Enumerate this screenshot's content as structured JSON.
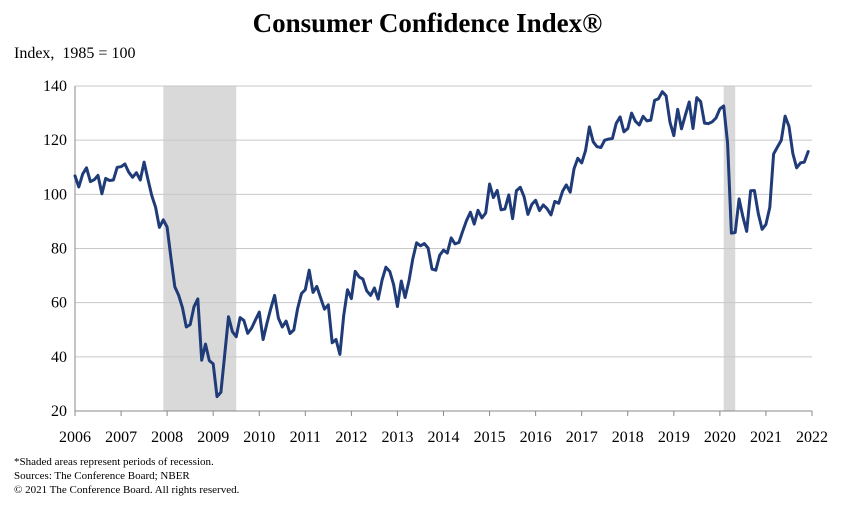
{
  "chart_data": {
    "type": "line",
    "title": "Consumer Confidence Index®",
    "ylabel": "Index,  1985 = 100",
    "xlabel": "",
    "ylim": [
      20,
      140
    ],
    "yticks": [
      20,
      40,
      60,
      80,
      100,
      120,
      140
    ],
    "xlim": [
      2006.0,
      2022.0
    ],
    "xticks": [
      "2006",
      "2007",
      "2008",
      "2009",
      "2010",
      "2011",
      "2012",
      "2013",
      "2014",
      "2015",
      "2016",
      "2017",
      "2018",
      "2019",
      "2020",
      "2021",
      "2022"
    ],
    "grid": true,
    "colors": {
      "line": "#1f3b78",
      "recession": "#d9d9d9",
      "grid": "#c8c8c8"
    },
    "recessions": [
      {
        "start": "2007-12",
        "end": "2009-06"
      },
      {
        "start": "2020-02",
        "end": "2020-04"
      }
    ],
    "series": [
      {
        "x": [
          "2006-01",
          "2006-02",
          "2006-03",
          "2006-04",
          "2006-05",
          "2006-06",
          "2006-07",
          "2006-08",
          "2006-09",
          "2006-10",
          "2006-11",
          "2006-12",
          "2007-01",
          "2007-02",
          "2007-03",
          "2007-04",
          "2007-05",
          "2007-06",
          "2007-07",
          "2007-08",
          "2007-09",
          "2007-10",
          "2007-11",
          "2007-12",
          "2008-01",
          "2008-02",
          "2008-03",
          "2008-04",
          "2008-05",
          "2008-06",
          "2008-07",
          "2008-08",
          "2008-09",
          "2008-10",
          "2008-11",
          "2008-12",
          "2009-01",
          "2009-02",
          "2009-03",
          "2009-04",
          "2009-05",
          "2009-06",
          "2009-07",
          "2009-08",
          "2009-09",
          "2009-10",
          "2009-11",
          "2009-12",
          "2010-01",
          "2010-02",
          "2010-03",
          "2010-04",
          "2010-05",
          "2010-06",
          "2010-07",
          "2010-08",
          "2010-09",
          "2010-10",
          "2010-11",
          "2010-12",
          "2011-01",
          "2011-02",
          "2011-03",
          "2011-04",
          "2011-05",
          "2011-06",
          "2011-07",
          "2011-08",
          "2011-09",
          "2011-10",
          "2011-11",
          "2011-12",
          "2012-01",
          "2012-02",
          "2012-03",
          "2012-04",
          "2012-05",
          "2012-06",
          "2012-07",
          "2012-08",
          "2012-09",
          "2012-10",
          "2012-11",
          "2012-12",
          "2013-01",
          "2013-02",
          "2013-03",
          "2013-04",
          "2013-05",
          "2013-06",
          "2013-07",
          "2013-08",
          "2013-09",
          "2013-10",
          "2013-11",
          "2013-12",
          "2014-01",
          "2014-02",
          "2014-03",
          "2014-04",
          "2014-05",
          "2014-06",
          "2014-07",
          "2014-08",
          "2014-09",
          "2014-10",
          "2014-11",
          "2014-12",
          "2015-01",
          "2015-02",
          "2015-03",
          "2015-04",
          "2015-05",
          "2015-06",
          "2015-07",
          "2015-08",
          "2015-09",
          "2015-10",
          "2015-11",
          "2015-12",
          "2016-01",
          "2016-02",
          "2016-03",
          "2016-04",
          "2016-05",
          "2016-06",
          "2016-07",
          "2016-08",
          "2016-09",
          "2016-10",
          "2016-11",
          "2016-12",
          "2017-01",
          "2017-02",
          "2017-03",
          "2017-04",
          "2017-05",
          "2017-06",
          "2017-07",
          "2017-08",
          "2017-09",
          "2017-10",
          "2017-11",
          "2017-12",
          "2018-01",
          "2018-02",
          "2018-03",
          "2018-04",
          "2018-05",
          "2018-06",
          "2018-07",
          "2018-08",
          "2018-09",
          "2018-10",
          "2018-11",
          "2018-12",
          "2019-01",
          "2019-02",
          "2019-03",
          "2019-04",
          "2019-05",
          "2019-06",
          "2019-07",
          "2019-08",
          "2019-09",
          "2019-10",
          "2019-11",
          "2019-12",
          "2020-01",
          "2020-02",
          "2020-03",
          "2020-04",
          "2020-05",
          "2020-06",
          "2020-07",
          "2020-08",
          "2020-09",
          "2020-10",
          "2020-11",
          "2020-12",
          "2021-01",
          "2021-02",
          "2021-03",
          "2021-04",
          "2021-05",
          "2021-06",
          "2021-07",
          "2021-08",
          "2021-09",
          "2021-10",
          "2021-11",
          "2021-12"
        ],
        "values": [
          106.8,
          102.7,
          107.5,
          109.8,
          104.7,
          105.4,
          107.0,
          100.2,
          105.9,
          105.1,
          105.3,
          110.0,
          110.2,
          111.2,
          108.2,
          106.3,
          108.0,
          105.3,
          111.9,
          105.6,
          99.5,
          95.2,
          87.8,
          90.6,
          87.9,
          76.4,
          65.9,
          62.8,
          58.1,
          51.0,
          51.9,
          58.5,
          61.4,
          38.8,
          44.7,
          38.6,
          37.4,
          25.3,
          26.9,
          40.8,
          54.8,
          49.3,
          47.4,
          54.5,
          53.4,
          48.7,
          50.6,
          53.6,
          56.5,
          46.4,
          52.3,
          57.9,
          62.7,
          54.3,
          51.0,
          53.2,
          48.6,
          49.9,
          57.8,
          63.4,
          64.8,
          72.0,
          63.8,
          66.0,
          61.7,
          57.6,
          59.2,
          45.2,
          46.4,
          40.9,
          55.2,
          64.8,
          61.5,
          71.6,
          69.5,
          68.7,
          64.4,
          62.7,
          65.4,
          61.3,
          68.4,
          73.1,
          71.5,
          66.7,
          58.6,
          68.0,
          61.9,
          68.1,
          76.2,
          82.1,
          81.0,
          81.8,
          80.2,
          72.4,
          72.0,
          77.5,
          79.4,
          78.3,
          83.9,
          81.7,
          82.2,
          86.4,
          90.3,
          93.4,
          89.0,
          94.1,
          91.3,
          93.1,
          103.8,
          98.8,
          101.4,
          94.3,
          94.6,
          99.8,
          91.0,
          101.3,
          102.6,
          99.1,
          92.6,
          96.3,
          97.8,
          94.0,
          96.1,
          94.7,
          92.4,
          97.4,
          96.7,
          101.1,
          103.5,
          100.8,
          109.4,
          113.3,
          111.6,
          116.1,
          124.9,
          119.4,
          117.6,
          117.3,
          120.0,
          120.4,
          120.6,
          126.2,
          128.6,
          123.1,
          124.3,
          130.0,
          127.0,
          125.6,
          128.8,
          127.1,
          127.4,
          134.7,
          135.3,
          137.9,
          136.4,
          126.6,
          121.7,
          131.4,
          124.2,
          129.2,
          134.1,
          124.3,
          135.7,
          134.2,
          126.3,
          126.1,
          126.8,
          128.2,
          131.6,
          132.6,
          118.8,
          85.7,
          85.9,
          98.3,
          91.7,
          86.3,
          101.3,
          101.4,
          92.9,
          87.1,
          88.9,
          95.2,
          114.9,
          117.5,
          120.0,
          128.9,
          125.1,
          115.2,
          109.8,
          111.6,
          111.9,
          115.8
        ]
      }
    ]
  },
  "notes": [
    "*Shaded areas represent periods of recession.",
    "Sources: The Conference Board; NBER",
    "© 2021  The Conference Board.  All rights reserved."
  ]
}
